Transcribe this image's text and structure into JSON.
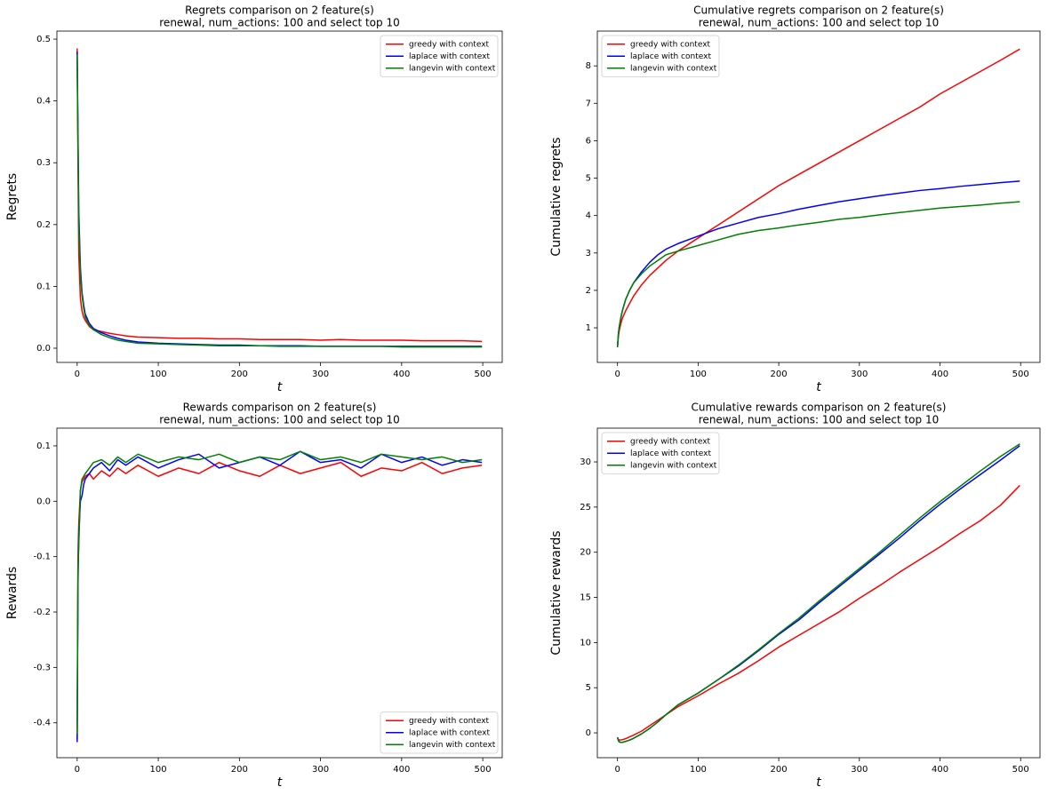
{
  "chart_data": [
    {
      "type": "line",
      "title": "Regrets comparison on 2 feature(s)",
      "subtitle": "renewal, num_actions: 100 and select top 10",
      "x_label": "t",
      "y_label": "Regrets",
      "legend": "upper right",
      "x": [
        0,
        1,
        2,
        4,
        6,
        8,
        10,
        15,
        20,
        30,
        40,
        50,
        60,
        75,
        100,
        125,
        150,
        175,
        200,
        225,
        250,
        275,
        300,
        325,
        350,
        375,
        400,
        425,
        450,
        475,
        499
      ],
      "series": [
        {
          "name": "greedy with context",
          "color": "#ff0000",
          "values": [
            0.485,
            0.3,
            0.15,
            0.08,
            0.06,
            0.05,
            0.045,
            0.035,
            0.03,
            0.027,
            0.024,
            0.022,
            0.02,
            0.018,
            0.017,
            0.016,
            0.016,
            0.015,
            0.015,
            0.014,
            0.014,
            0.014,
            0.013,
            0.014,
            0.013,
            0.013,
            0.013,
            0.012,
            0.012,
            0.012,
            0.011
          ]
        },
        {
          "name": "laplace with context",
          "color": "#0000ff",
          "values": [
            0.48,
            0.35,
            0.22,
            0.13,
            0.09,
            0.07,
            0.055,
            0.04,
            0.032,
            0.025,
            0.02,
            0.016,
            0.013,
            0.01,
            0.008,
            0.007,
            0.006,
            0.005,
            0.005,
            0.004,
            0.004,
            0.004,
            0.003,
            0.003,
            0.003,
            0.003,
            0.003,
            0.003,
            0.003,
            0.003,
            0.003
          ]
        },
        {
          "name": "langevin with context",
          "color": "#008000",
          "values": [
            0.475,
            0.33,
            0.2,
            0.12,
            0.085,
            0.065,
            0.05,
            0.037,
            0.03,
            0.022,
            0.017,
            0.013,
            0.011,
            0.008,
            0.007,
            0.006,
            0.005,
            0.004,
            0.004,
            0.004,
            0.003,
            0.003,
            0.003,
            0.003,
            0.003,
            0.003,
            0.002,
            0.002,
            0.002,
            0.002,
            0.002
          ]
        }
      ],
      "xlim": [
        -25,
        524
      ],
      "xticks": [
        0,
        100,
        200,
        300,
        400,
        500
      ],
      "ylim": [
        -0.023,
        0.513
      ],
      "yticks": [
        {
          "value": 0,
          "label": "0.0"
        },
        0.1,
        0.2,
        0.3,
        0.4,
        0.5
      ]
    },
    {
      "type": "line",
      "title": "Cumulative regrets comparison on 2 feature(s)",
      "subtitle": "renewal, num_actions: 100 and select top 10",
      "x_label": "t",
      "y_label": "Cumulative regrets",
      "legend": "upper left",
      "x": [
        0,
        1,
        2,
        4,
        6,
        8,
        10,
        15,
        20,
        30,
        40,
        50,
        60,
        75,
        100,
        125,
        150,
        175,
        200,
        225,
        250,
        275,
        300,
        325,
        350,
        375,
        400,
        425,
        450,
        475,
        499
      ],
      "series": [
        {
          "name": "greedy with context",
          "color": "#ff0000",
          "values": [
            0.48,
            0.75,
            0.9,
            1.1,
            1.25,
            1.35,
            1.45,
            1.65,
            1.85,
            2.15,
            2.4,
            2.6,
            2.8,
            3.05,
            3.4,
            3.75,
            4.1,
            4.45,
            4.8,
            5.1,
            5.4,
            5.7,
            6.0,
            6.3,
            6.6,
            6.9,
            7.25,
            7.55,
            7.85,
            8.15,
            8.45
          ]
        },
        {
          "name": "laplace with context",
          "color": "#0000ff",
          "values": [
            0.48,
            0.8,
            1.0,
            1.25,
            1.45,
            1.6,
            1.75,
            2.0,
            2.2,
            2.5,
            2.75,
            2.95,
            3.1,
            3.25,
            3.45,
            3.65,
            3.8,
            3.95,
            4.05,
            4.17,
            4.27,
            4.37,
            4.45,
            4.53,
            4.6,
            4.67,
            4.72,
            4.78,
            4.83,
            4.88,
            4.92
          ]
        },
        {
          "name": "langevin with context",
          "color": "#008000",
          "values": [
            0.48,
            0.8,
            1.0,
            1.25,
            1.45,
            1.6,
            1.75,
            2.0,
            2.2,
            2.45,
            2.65,
            2.8,
            2.95,
            3.05,
            3.2,
            3.35,
            3.5,
            3.6,
            3.67,
            3.75,
            3.82,
            3.9,
            3.95,
            4.02,
            4.08,
            4.14,
            4.2,
            4.24,
            4.28,
            4.33,
            4.37
          ]
        }
      ],
      "xlim": [
        -25,
        524
      ],
      "xticks": [
        0,
        100,
        200,
        300,
        400,
        500
      ],
      "ylim": [
        0.075,
        8.93
      ],
      "yticks": [
        1,
        2,
        3,
        4,
        5,
        6,
        7,
        8
      ]
    },
    {
      "type": "line",
      "title": "Rewards comparison on 2 feature(s)",
      "subtitle": "renewal, num_actions: 100 and select top 10",
      "x_label": "t",
      "y_label": "Rewards",
      "legend": "lower right",
      "x": [
        0,
        1,
        2,
        4,
        6,
        8,
        10,
        15,
        20,
        30,
        40,
        50,
        60,
        75,
        100,
        125,
        150,
        175,
        200,
        225,
        250,
        275,
        300,
        325,
        350,
        375,
        400,
        425,
        450,
        475,
        499
      ],
      "series": [
        {
          "name": "greedy with context",
          "color": "#ff0000",
          "values": [
            -0.43,
            -0.1,
            -0.04,
            0.02,
            0.035,
            0.04,
            0.045,
            0.05,
            0.04,
            0.055,
            0.045,
            0.06,
            0.05,
            0.065,
            0.045,
            0.06,
            0.05,
            0.07,
            0.055,
            0.045,
            0.065,
            0.05,
            0.06,
            0.07,
            0.045,
            0.06,
            0.055,
            0.07,
            0.05,
            0.06,
            0.065
          ]
        },
        {
          "name": "laplace with context",
          "color": "#0000ff",
          "values": [
            -0.435,
            -0.15,
            -0.06,
            0.0,
            0.01,
            0.03,
            0.04,
            0.05,
            0.06,
            0.07,
            0.055,
            0.075,
            0.065,
            0.08,
            0.06,
            0.075,
            0.085,
            0.06,
            0.07,
            0.08,
            0.065,
            0.09,
            0.07,
            0.075,
            0.06,
            0.085,
            0.07,
            0.08,
            0.065,
            0.075,
            0.07
          ]
        },
        {
          "name": "langevin with context",
          "color": "#008000",
          "values": [
            -0.42,
            -0.12,
            -0.08,
            0.02,
            0.04,
            0.045,
            0.05,
            0.06,
            0.07,
            0.075,
            0.065,
            0.08,
            0.07,
            0.085,
            0.07,
            0.08,
            0.075,
            0.085,
            0.07,
            0.08,
            0.075,
            0.09,
            0.075,
            0.08,
            0.07,
            0.085,
            0.08,
            0.075,
            0.08,
            0.07,
            0.075
          ]
        }
      ],
      "xlim": [
        -25,
        524
      ],
      "xticks": [
        0,
        100,
        200,
        300,
        400,
        500
      ],
      "ylim": [
        -0.463,
        0.132
      ],
      "yticks": [
        -0.4,
        -0.3,
        -0.2,
        -0.1,
        {
          "value": 0,
          "label": "0.0"
        },
        0.1
      ]
    },
    {
      "type": "line",
      "title": "Cumulative rewards comparison on 2 feature(s)",
      "subtitle": "renewal, num_actions: 100 and select top 10",
      "x_label": "t",
      "y_label": "Cumulative rewards",
      "legend": "upper left",
      "x": [
        0,
        1,
        2,
        4,
        6,
        8,
        10,
        15,
        20,
        30,
        40,
        50,
        60,
        75,
        100,
        125,
        150,
        175,
        200,
        225,
        250,
        275,
        300,
        325,
        350,
        375,
        400,
        425,
        450,
        475,
        499
      ],
      "series": [
        {
          "name": "greedy with context",
          "color": "#ff0000",
          "values": [
            -0.5,
            -0.7,
            -0.8,
            -0.8,
            -0.75,
            -0.7,
            -0.65,
            -0.45,
            -0.25,
            0.2,
            0.8,
            1.4,
            2.0,
            2.9,
            4.1,
            5.4,
            6.6,
            8.0,
            9.5,
            10.8,
            12.1,
            13.4,
            14.9,
            16.3,
            17.8,
            19.2,
            20.6,
            22.1,
            23.5,
            25.2,
            27.4
          ]
        },
        {
          "name": "laplace with context",
          "color": "#0000ff",
          "values": [
            -0.5,
            -0.8,
            -1.0,
            -1.05,
            -1.05,
            -1.0,
            -0.95,
            -0.8,
            -0.6,
            -0.1,
            0.5,
            1.2,
            2.0,
            3.1,
            4.4,
            5.9,
            7.4,
            9.1,
            10.9,
            12.5,
            14.4,
            16.2,
            18.0,
            19.8,
            21.6,
            23.5,
            25.3,
            27.0,
            28.6,
            30.2,
            31.8
          ]
        },
        {
          "name": "langevin with context",
          "color": "#008000",
          "values": [
            -0.5,
            -0.8,
            -1.0,
            -1.05,
            -1.05,
            -1.0,
            -0.95,
            -0.8,
            -0.6,
            -0.1,
            0.5,
            1.2,
            2.0,
            3.1,
            4.4,
            5.9,
            7.5,
            9.2,
            11.0,
            12.7,
            14.6,
            16.4,
            18.2,
            20.0,
            21.9,
            23.8,
            25.6,
            27.3,
            29.0,
            30.6,
            32.0
          ]
        }
      ],
      "xlim": [
        -25,
        524
      ],
      "xticks": [
        0,
        100,
        200,
        300,
        400,
        500
      ],
      "ylim": [
        -2.75,
        33.74
      ],
      "yticks": [
        0,
        5,
        10,
        15,
        20,
        25,
        30
      ]
    }
  ]
}
